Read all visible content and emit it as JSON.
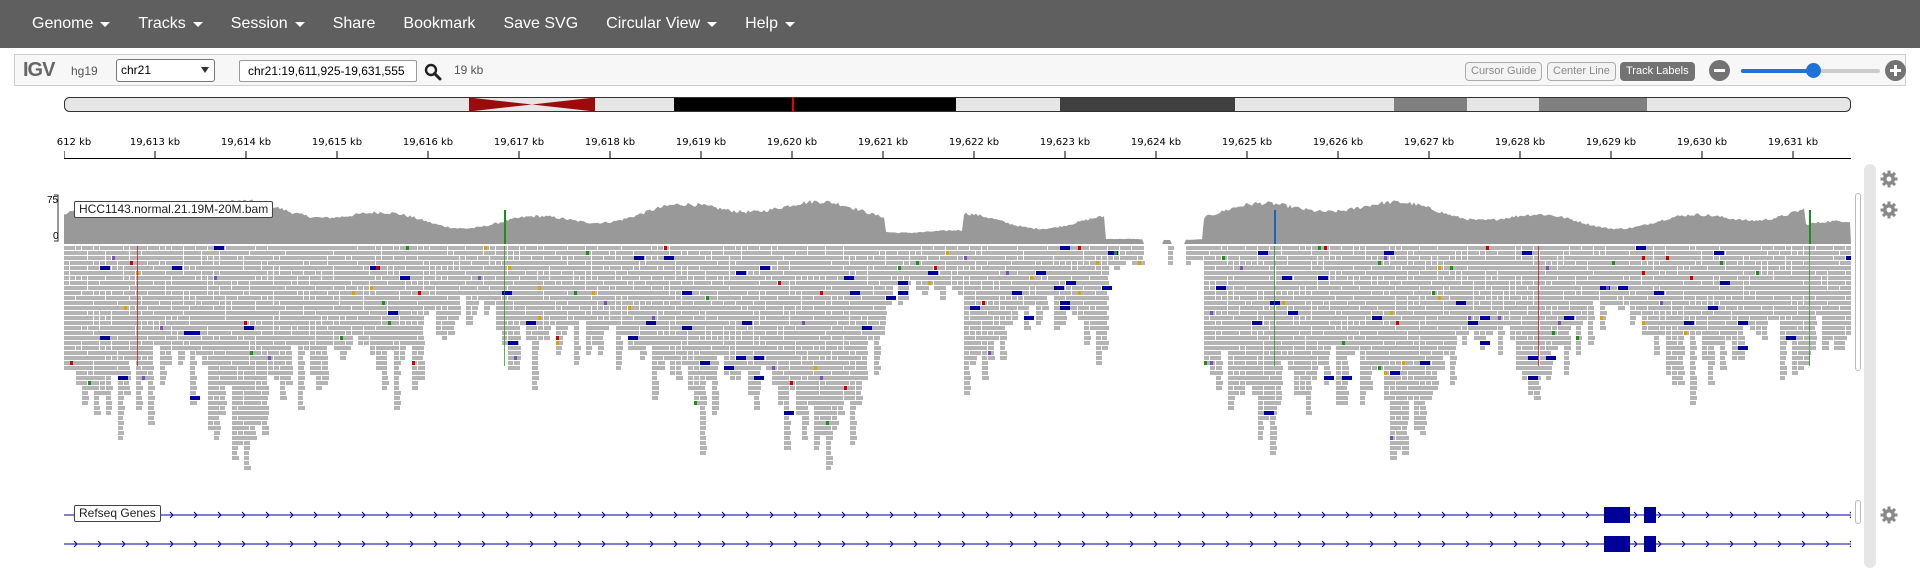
{
  "navbar": {
    "items": [
      {
        "label": "Genome",
        "dropdown": true
      },
      {
        "label": "Tracks",
        "dropdown": true
      },
      {
        "label": "Session",
        "dropdown": true
      },
      {
        "label": "Share",
        "dropdown": false
      },
      {
        "label": "Bookmark",
        "dropdown": false
      },
      {
        "label": "Save SVG",
        "dropdown": false
      },
      {
        "label": "Circular View",
        "dropdown": true
      },
      {
        "label": "Help",
        "dropdown": true
      }
    ]
  },
  "toolbar": {
    "logo": "IGV",
    "genome": "hg19",
    "chromosome": "chr21",
    "locus": "chr21:19,611,925-19,631,555",
    "window_size": "19 kb",
    "cursor_guide_label": "Cursor Guide",
    "center_line_label": "Center Line",
    "track_labels_label": "Track Labels",
    "zoom_level": 0.52
  },
  "ruler": {
    "tick_labels": [
      "612 kb",
      "19,613 kb",
      "19,614 kb",
      "19,615 kb",
      "19,616 kb",
      "19,617 kb",
      "19,618 kb",
      "19,619 kb",
      "19,620 kb",
      "19,621 kb",
      "19,622 kb",
      "19,623 kb",
      "19,624 kb",
      "19,625 kb",
      "19,626 kb",
      "19,627 kb",
      "19,628 kb",
      "19,629 kb",
      "19,630 kb",
      "19,631 kb"
    ]
  },
  "tracks": {
    "bam": {
      "name": "HCC1143.normal.21.19M-20M.bam",
      "coverage_max": "75",
      "coverage_min": "0"
    },
    "genes": {
      "name": "Refseq Genes"
    }
  },
  "colors": {
    "navbar": "#5f5f5f",
    "read": "#b4b4b4",
    "coverage": "#999999",
    "gene": "#000099",
    "ideogram_centromere": "#9b0b0b",
    "accent": "#1e73d8"
  }
}
